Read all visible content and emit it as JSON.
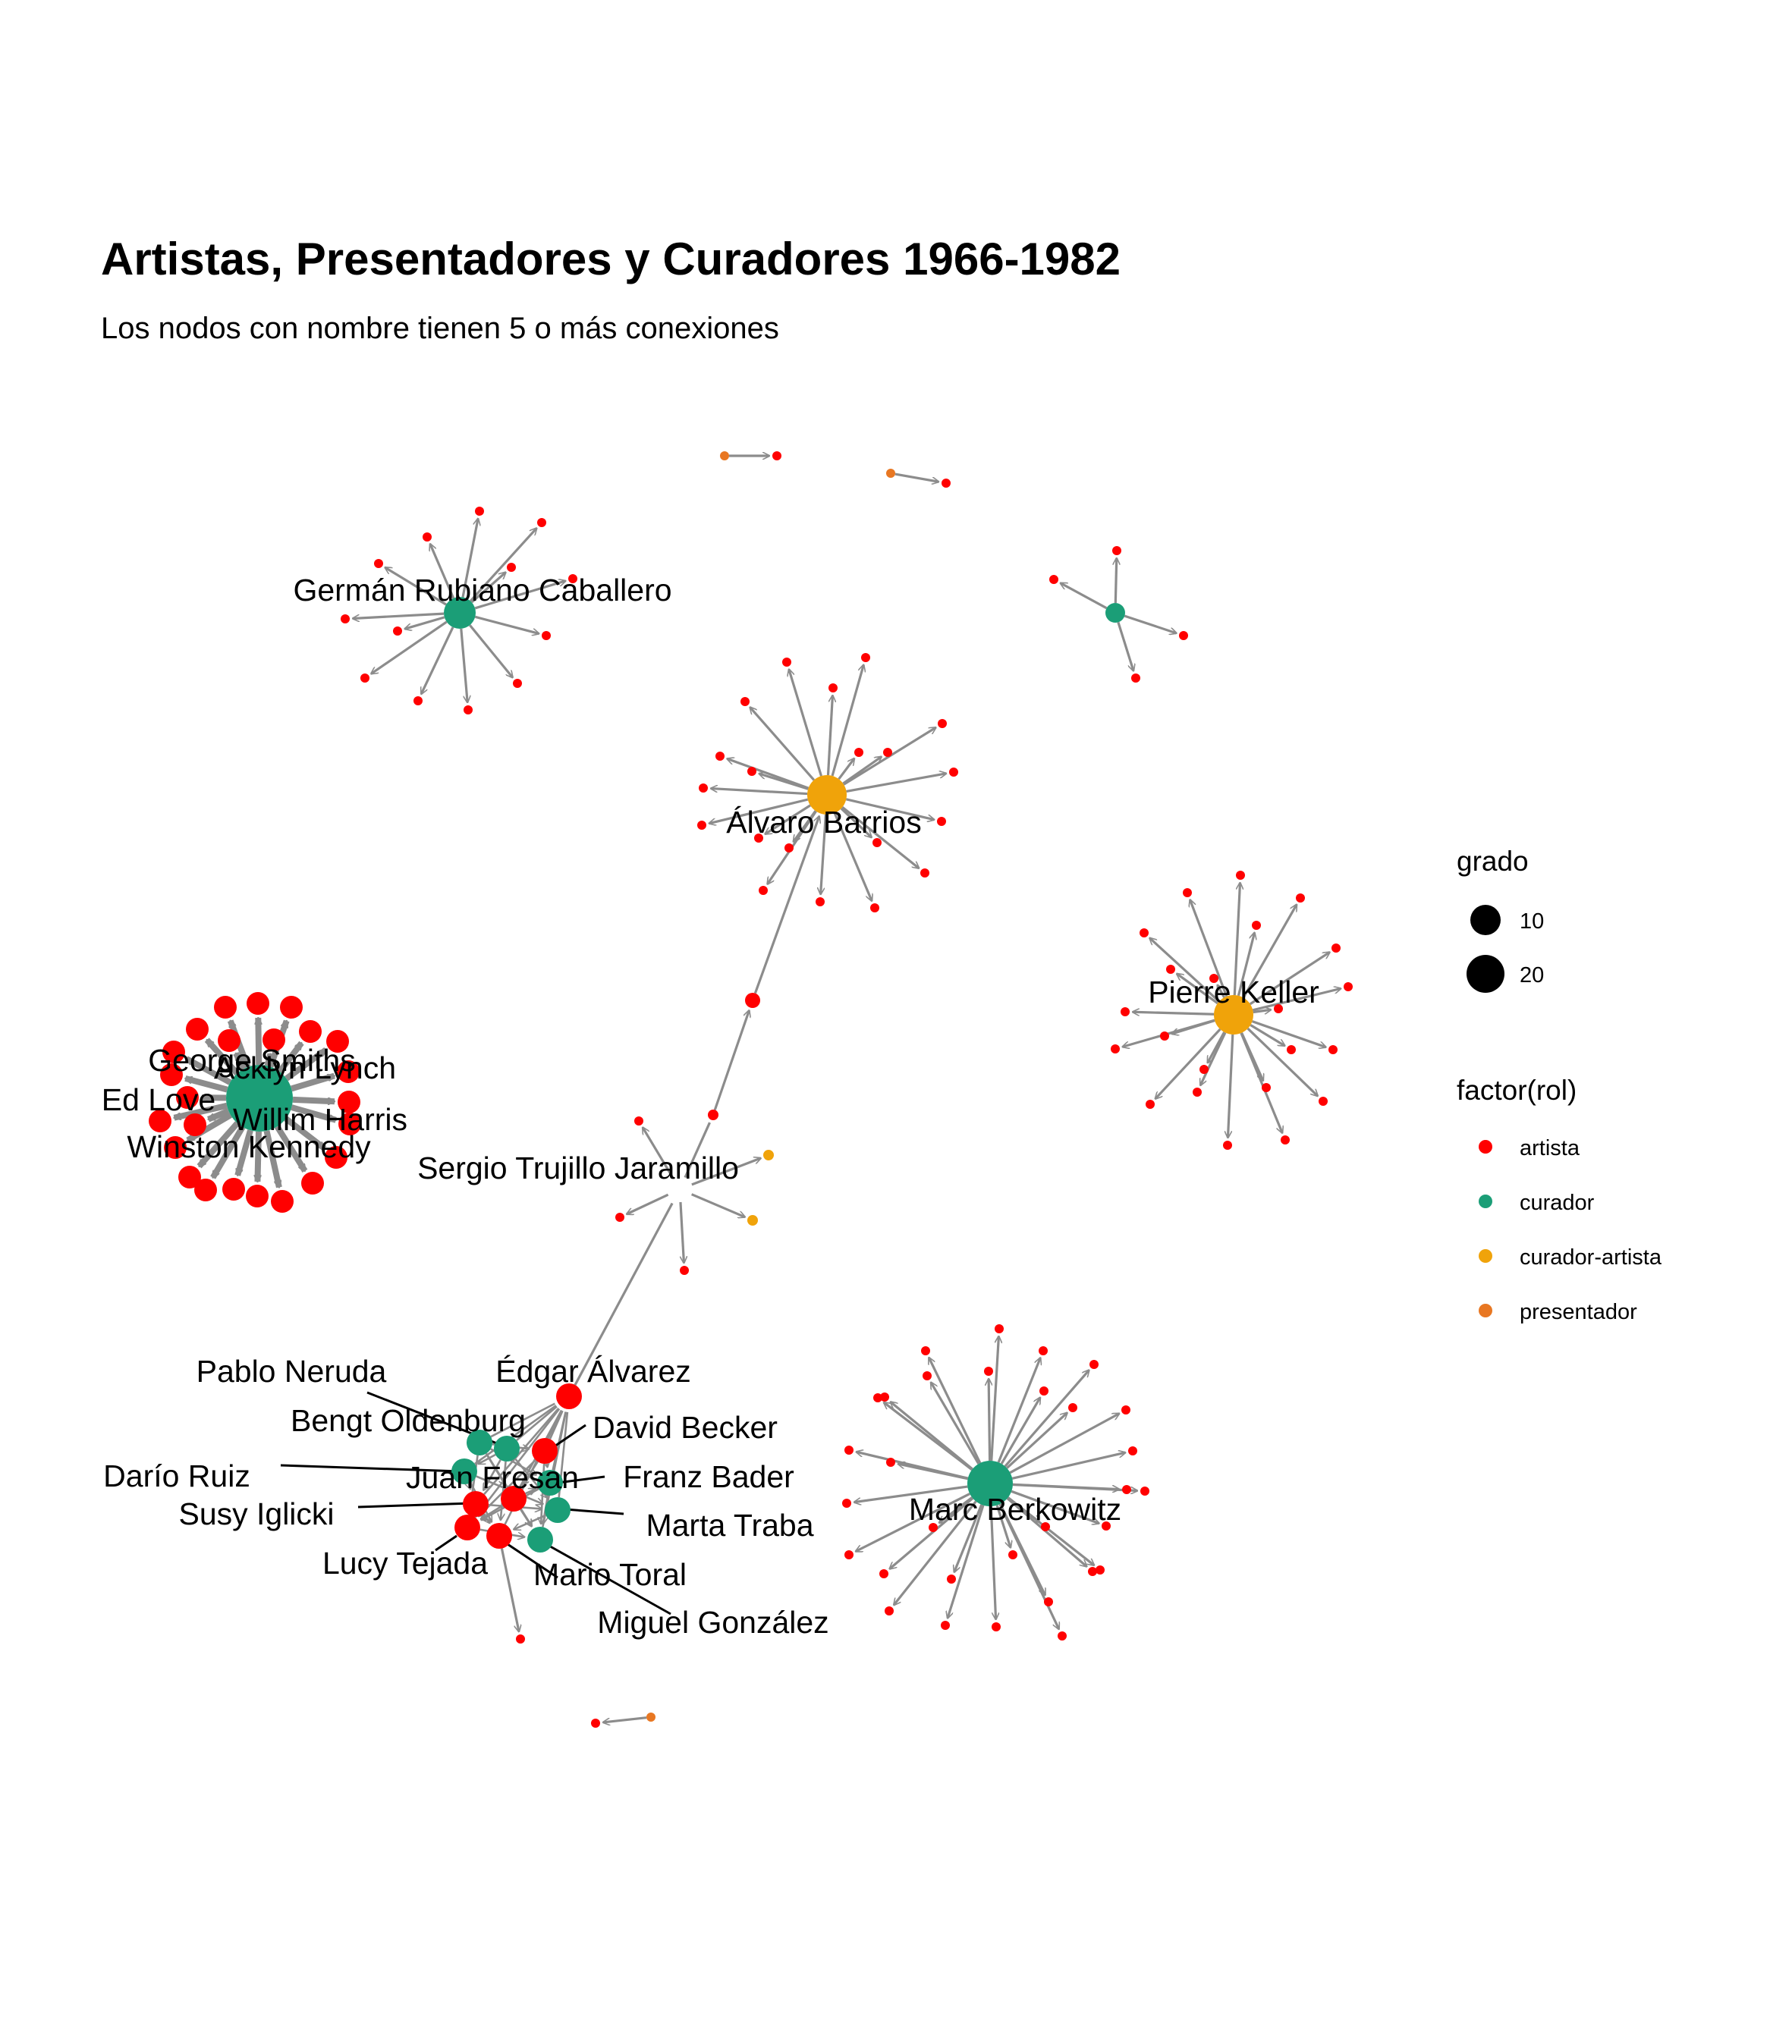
{
  "title": "Artistas, Presentadores y Curadores 1966-1982",
  "subtitle": "Los nodos con nombre tienen 5 o más conexiones",
  "legend": {
    "size_title": "grado",
    "size_items": [
      "10",
      "20"
    ],
    "color_title": "factor(rol)",
    "color_items": [
      {
        "label": "artista",
        "color": "#FF0000"
      },
      {
        "label": "curador",
        "color": "#1B9E77"
      },
      {
        "label": "curador-artista",
        "color": "#F0A30A"
      },
      {
        "label": "presentador",
        "color": "#E87722"
      }
    ]
  },
  "colors": {
    "artista": "#FF0000",
    "curador": "#1B9E77",
    "curador-artista": "#F0A30A",
    "presentador": "#E87722",
    "edge": "#8C8C8C",
    "leader": "#000000"
  },
  "labels": {
    "german": "Germán Rubiano Caballero",
    "alvaro": "Álvaro Barrios",
    "pierre": "Pierre Keller",
    "george": "George Smiths",
    "acklyn": "Acklyn Lynch",
    "edlove": "Ed Love",
    "willim": "Willim Harris",
    "winston": "Winston Kennedy",
    "sergio": "Sergio Trujillo Jaramillo",
    "pablo": "Pablo Neruda",
    "edgar": "Édgar Álvarez",
    "bengt": "Bengt Oldenburg",
    "david": "David Becker",
    "dario": "Darío Ruiz",
    "juan": "Juan Fresan",
    "franz": "Franz Bader",
    "susy": "Susy Iglicki",
    "marta": "Marta Traba",
    "lucy": "Lucy Tejada",
    "mario": "Mario Toral",
    "miguel": "Miguel González",
    "marc": "Marc Berkowitz"
  }
}
